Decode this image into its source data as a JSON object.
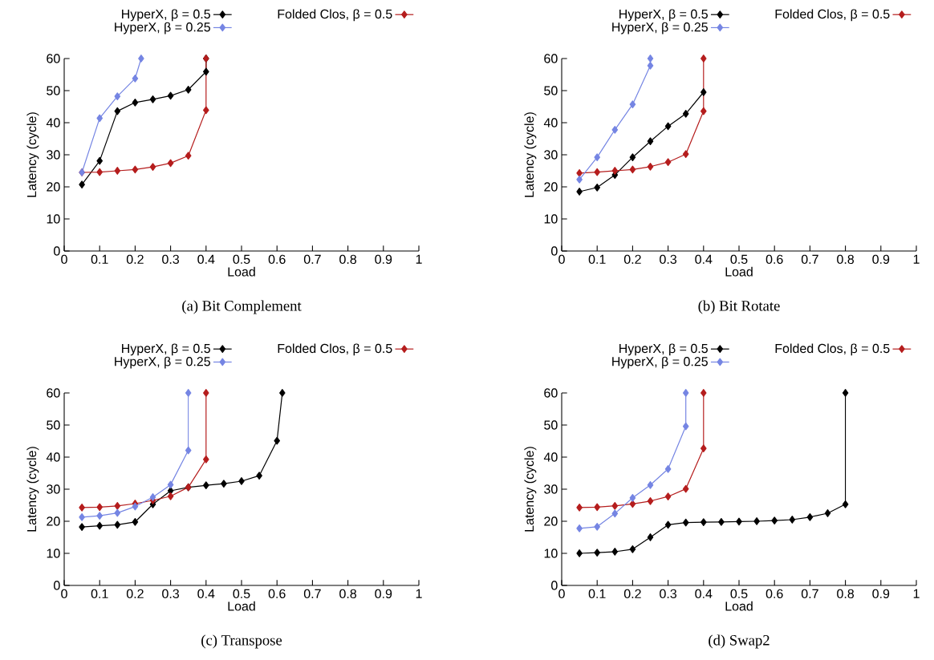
{
  "chart_data": [
    {
      "type": "line",
      "title": "(a) Bit Complement",
      "xlabel": "Load",
      "ylabel": "Latency (cycle)",
      "xlim": [
        0,
        1
      ],
      "ylim": [
        0,
        60
      ],
      "xticks": [
        0,
        0.1,
        0.2,
        0.3,
        0.4,
        0.5,
        0.6,
        0.7,
        0.8,
        0.9,
        1
      ],
      "yticks": [
        0,
        10,
        20,
        30,
        40,
        50,
        60
      ],
      "legend": "top",
      "marker": "diamond",
      "line_style": "solid",
      "grid": false,
      "series": [
        {
          "name": "HyperX, β = 0.5",
          "color": "#000000",
          "x": [
            0.05,
            0.1,
            0.15,
            0.2,
            0.25,
            0.3,
            0.35,
            0.4,
            0.4
          ],
          "values": [
            20.7,
            28.1,
            43.6,
            46.3,
            47.3,
            48.4,
            50.3,
            55.9,
            60
          ]
        },
        {
          "name": "Folded Clos, β = 0.5",
          "color": "#b51d1d",
          "x": [
            0.05,
            0.1,
            0.15,
            0.2,
            0.25,
            0.3,
            0.35,
            0.4,
            0.4
          ],
          "values": [
            24.5,
            24.6,
            25.0,
            25.4,
            26.2,
            27.4,
            29.7,
            43.9,
            60
          ]
        },
        {
          "name": "HyperX, β = 0.25",
          "color": "#7585e3",
          "x": [
            0.05,
            0.1,
            0.15,
            0.2,
            0.217
          ],
          "values": [
            24.5,
            41.4,
            48.2,
            53.8,
            60
          ]
        }
      ]
    },
    {
      "type": "line",
      "title": "(b) Bit Rotate",
      "xlabel": "Load",
      "ylabel": "Latency (cycle)",
      "xlim": [
        0,
        1
      ],
      "ylim": [
        0,
        60
      ],
      "xticks": [
        0,
        0.1,
        0.2,
        0.3,
        0.4,
        0.5,
        0.6,
        0.7,
        0.8,
        0.9,
        1
      ],
      "yticks": [
        0,
        10,
        20,
        30,
        40,
        50,
        60
      ],
      "legend": "top",
      "marker": "diamond",
      "line_style": "solid",
      "grid": false,
      "series": [
        {
          "name": "HyperX, β = 0.5",
          "color": "#000000",
          "x": [
            0.05,
            0.1,
            0.15,
            0.2,
            0.25,
            0.3,
            0.35,
            0.4
          ],
          "values": [
            18.5,
            19.8,
            23.7,
            29.2,
            34.2,
            38.9,
            42.8,
            49.5
          ]
        },
        {
          "name": "Folded Clos, β = 0.5",
          "color": "#b51d1d",
          "x": [
            0.05,
            0.1,
            0.15,
            0.2,
            0.25,
            0.3,
            0.35,
            0.4,
            0.4
          ],
          "values": [
            24.3,
            24.6,
            25.0,
            25.4,
            26.3,
            27.7,
            30.2,
            43.6,
            60
          ]
        },
        {
          "name": "HyperX, β = 0.25",
          "color": "#7585e3",
          "x": [
            0.05,
            0.1,
            0.15,
            0.2,
            0.25,
            0.25
          ],
          "values": [
            22.3,
            29.2,
            37.8,
            45.7,
            57.8,
            60
          ]
        }
      ]
    },
    {
      "type": "line",
      "title": "(c) Transpose",
      "xlabel": "Load",
      "ylabel": "Latency (cycle)",
      "xlim": [
        0,
        1
      ],
      "ylim": [
        0,
        60
      ],
      "xticks": [
        0,
        0.1,
        0.2,
        0.3,
        0.4,
        0.5,
        0.6,
        0.7,
        0.8,
        0.9,
        1
      ],
      "yticks": [
        0,
        10,
        20,
        30,
        40,
        50,
        60
      ],
      "legend": "top",
      "marker": "diamond",
      "line_style": "solid",
      "grid": false,
      "series": [
        {
          "name": "HyperX, β = 0.5",
          "color": "#000000",
          "x": [
            0.05,
            0.1,
            0.15,
            0.2,
            0.25,
            0.3,
            0.35,
            0.4,
            0.45,
            0.5,
            0.55,
            0.6,
            0.615
          ],
          "values": [
            18.2,
            18.6,
            18.9,
            19.8,
            25.3,
            29.5,
            30.6,
            31.2,
            31.7,
            32.5,
            34.2,
            45.1,
            60
          ]
        },
        {
          "name": "Folded Clos, β = 0.5",
          "color": "#b51d1d",
          "x": [
            0.05,
            0.1,
            0.15,
            0.2,
            0.25,
            0.3,
            0.35,
            0.4,
            0.4
          ],
          "values": [
            24.3,
            24.4,
            24.8,
            25.5,
            26.5,
            27.8,
            30.6,
            39.3,
            60
          ]
        },
        {
          "name": "HyperX, β = 0.25",
          "color": "#7585e3",
          "x": [
            0.05,
            0.1,
            0.15,
            0.2,
            0.25,
            0.3,
            0.35,
            0.35
          ],
          "values": [
            21.3,
            21.7,
            22.6,
            24.6,
            27.5,
            31.4,
            42.1,
            60
          ]
        }
      ]
    },
    {
      "type": "line",
      "title": "(d) Swap2",
      "xlabel": "Load",
      "ylabel": "Latency (cycle)",
      "xlim": [
        0,
        1
      ],
      "ylim": [
        0,
        60
      ],
      "xticks": [
        0,
        0.1,
        0.2,
        0.3,
        0.4,
        0.5,
        0.6,
        0.7,
        0.8,
        0.9,
        1
      ],
      "yticks": [
        0,
        10,
        20,
        30,
        40,
        50,
        60
      ],
      "legend": "top",
      "marker": "diamond",
      "line_style": "solid",
      "grid": false,
      "series": [
        {
          "name": "HyperX, β = 0.5",
          "color": "#000000",
          "x": [
            0.05,
            0.1,
            0.15,
            0.2,
            0.25,
            0.3,
            0.35,
            0.4,
            0.45,
            0.5,
            0.55,
            0.6,
            0.65,
            0.7,
            0.75,
            0.8,
            0.8
          ],
          "values": [
            10.0,
            10.2,
            10.5,
            11.3,
            15.0,
            18.9,
            19.6,
            19.7,
            19.8,
            19.9,
            20.0,
            20.2,
            20.5,
            21.3,
            22.5,
            25.3,
            60
          ]
        },
        {
          "name": "Folded Clos, β = 0.5",
          "color": "#b51d1d",
          "x": [
            0.05,
            0.1,
            0.15,
            0.2,
            0.25,
            0.3,
            0.35,
            0.4,
            0.4
          ],
          "values": [
            24.3,
            24.4,
            24.8,
            25.4,
            26.3,
            27.7,
            30.1,
            42.7,
            60
          ]
        },
        {
          "name": "HyperX, β = 0.25",
          "color": "#7585e3",
          "x": [
            0.05,
            0.1,
            0.15,
            0.2,
            0.25,
            0.3,
            0.35,
            0.35
          ],
          "values": [
            17.8,
            18.3,
            22.4,
            27.3,
            31.3,
            36.3,
            49.6,
            60
          ]
        }
      ]
    }
  ]
}
